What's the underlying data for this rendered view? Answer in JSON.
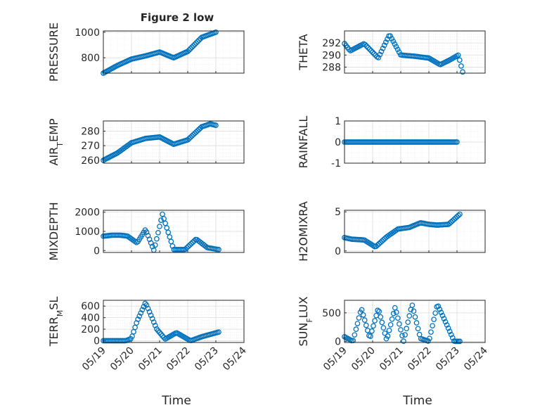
{
  "title": "Figure 2 low",
  "xlabel": "Time",
  "x_ticks": [
    "05/19",
    "05/20",
    "05/21",
    "05/22",
    "05/23",
    "05/24"
  ],
  "color": "#0072BD",
  "chart_data": [
    {
      "type": "scatter",
      "ylabel": "PRESSURE",
      "ylabel_sub": "",
      "ylabel_after": "",
      "ylim": [
        680,
        1010
      ],
      "yticks": [
        800,
        1000
      ],
      "x": [
        0,
        0.5,
        1,
        1.5,
        2,
        2.5,
        3,
        3.5,
        4
      ],
      "y": [
        680,
        740,
        790,
        815,
        845,
        800,
        850,
        960,
        1000
      ]
    },
    {
      "type": "scatter",
      "ylabel": "THETA",
      "ylabel_sub": "",
      "ylabel_after": "",
      "ylim": [
        287,
        294
      ],
      "yticks": [
        288,
        290,
        292
      ],
      "x": [
        0,
        0.2,
        0.7,
        1.2,
        1.6,
        2,
        2.5,
        3,
        3.4,
        3.75,
        4.05,
        4.2
      ],
      "y": [
        291.9,
        290.7,
        291.9,
        289.5,
        293.4,
        290,
        289.8,
        289.5,
        288.4,
        289.2,
        290,
        287.2
      ]
    },
    {
      "type": "scatter",
      "ylabel": "AIR",
      "ylabel_sub": "T",
      "ylabel_after": "EMP",
      "ylim": [
        258,
        287
      ],
      "yticks": [
        260,
        270,
        280
      ],
      "x": [
        0,
        0.5,
        1,
        1.5,
        2,
        2.5,
        3,
        3.5,
        3.8,
        4
      ],
      "y": [
        260,
        265,
        272,
        275,
        276,
        271,
        274,
        283,
        285,
        284
      ]
    },
    {
      "type": "scatter",
      "ylabel": "RAINFALL",
      "ylabel_sub": "",
      "ylabel_after": "",
      "ylim": [
        -1,
        1
      ],
      "yticks": [
        -1,
        0,
        1
      ],
      "x": [
        0,
        0.5,
        1,
        1.5,
        2,
        2.5,
        3,
        3.5,
        4
      ],
      "y": [
        0,
        0,
        0,
        0,
        0,
        0,
        0,
        0,
        0
      ]
    },
    {
      "type": "scatter",
      "ylabel": "MIXDEPTH",
      "ylabel_sub": "",
      "ylabel_after": "",
      "ylim": [
        -100,
        2100
      ],
      "yticks": [
        0,
        1000,
        2000
      ],
      "x": [
        0,
        0.3,
        0.6,
        0.85,
        1.2,
        1.5,
        1.8,
        2.1,
        2.5,
        2.9,
        3.3,
        3.7,
        4.1
      ],
      "y": [
        750,
        800,
        800,
        760,
        400,
        1100,
        0,
        1900,
        50,
        50,
        600,
        150,
        50
      ]
    },
    {
      "type": "scatter",
      "ylabel": "H2OMIXRA",
      "ylabel_sub": "",
      "ylabel_after": "",
      "ylim": [
        -0.2,
        5.2
      ],
      "yticks": [
        0,
        5
      ],
      "x": [
        0,
        0.25,
        0.7,
        1.1,
        1.5,
        1.9,
        2.3,
        2.7,
        3.0,
        3.3,
        3.7,
        4.1
      ],
      "y": [
        1.7,
        1.5,
        1.4,
        0.5,
        1.8,
        2.8,
        3.0,
        3.6,
        3.4,
        3.3,
        3.4,
        4.7
      ]
    },
    {
      "type": "scatter",
      "ylabel": "TERR",
      "ylabel_sub": "M",
      "ylabel_after": "SL",
      "ylim": [
        -30,
        700
      ],
      "yticks": [
        0,
        200,
        400,
        600
      ],
      "x": [
        0,
        0.4,
        0.8,
        1.0,
        1.2,
        1.5,
        1.9,
        2.2,
        2.6,
        3.1,
        3.5,
        4.1
      ],
      "y": [
        0,
        0,
        0,
        40,
        340,
        660,
        200,
        30,
        140,
        0,
        70,
        150
      ]
    },
    {
      "type": "scatter",
      "ylabel": "SUN",
      "ylabel_sub": "F",
      "ylabel_after": "LUX",
      "ylim": [
        -20,
        720
      ],
      "yticks": [
        0,
        500
      ],
      "x": [
        0,
        0.3,
        0.6,
        0.9,
        1.2,
        1.5,
        1.8,
        2.1,
        2.4,
        2.7,
        3.0,
        3.3,
        3.6,
        3.9,
        4.1
      ],
      "y": [
        80,
        0,
        580,
        50,
        580,
        20,
        600,
        0,
        650,
        50,
        0,
        650,
        330,
        0,
        0
      ]
    }
  ]
}
